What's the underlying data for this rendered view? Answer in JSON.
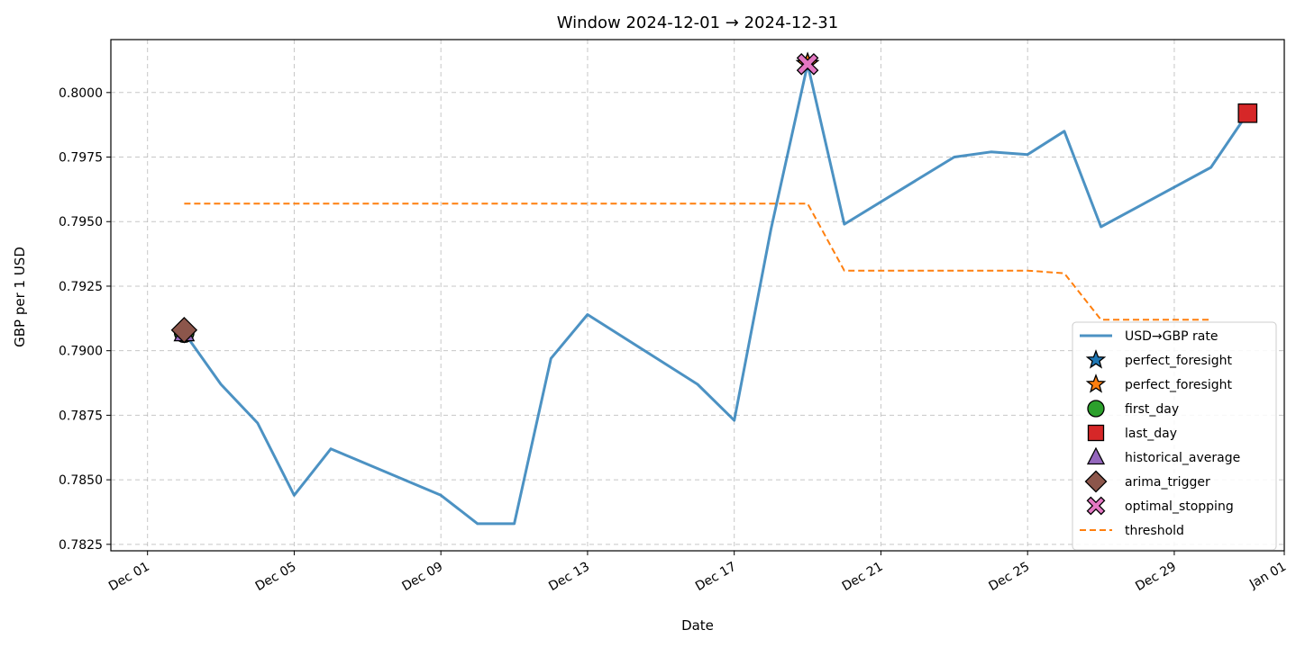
{
  "chart_data": {
    "type": "line",
    "title": "Window 2024-12-01 → 2024-12-31",
    "xlabel": "Date",
    "ylabel": "GBP per 1 USD",
    "xlim": [
      "2024-11-30",
      "2025-01-01"
    ],
    "ylim": [
      0.78225,
      0.80205
    ],
    "grid": true,
    "legend_position": "lower-right",
    "x_ticks": [
      {
        "date": "2024-12-01",
        "label": "Dec 01"
      },
      {
        "date": "2024-12-05",
        "label": "Dec 05"
      },
      {
        "date": "2024-12-09",
        "label": "Dec 09"
      },
      {
        "date": "2024-12-13",
        "label": "Dec 13"
      },
      {
        "date": "2024-12-17",
        "label": "Dec 17"
      },
      {
        "date": "2024-12-21",
        "label": "Dec 21"
      },
      {
        "date": "2024-12-25",
        "label": "Dec 25"
      },
      {
        "date": "2024-12-29",
        "label": "Dec 29"
      },
      {
        "date": "2025-01-01",
        "label": "Jan 01"
      }
    ],
    "y_ticks": [
      {
        "value": 0.7825,
        "label": "0.7825"
      },
      {
        "value": 0.785,
        "label": "0.7850"
      },
      {
        "value": 0.7875,
        "label": "0.7875"
      },
      {
        "value": 0.79,
        "label": "0.7900"
      },
      {
        "value": 0.7925,
        "label": "0.7925"
      },
      {
        "value": 0.795,
        "label": "0.7950"
      },
      {
        "value": 0.7975,
        "label": "0.7975"
      },
      {
        "value": 0.8,
        "label": "0.8000"
      }
    ],
    "series": [
      {
        "name": "USD→GBP rate",
        "kind": "line",
        "color": "#1f77b4",
        "points": [
          {
            "x": "2024-12-02",
            "y": 0.7907
          },
          {
            "x": "2024-12-03",
            "y": 0.7887
          },
          {
            "x": "2024-12-04",
            "y": 0.7872
          },
          {
            "x": "2024-12-05",
            "y": 0.7844
          },
          {
            "x": "2024-12-06",
            "y": 0.7862
          },
          {
            "x": "2024-12-09",
            "y": 0.7844
          },
          {
            "x": "2024-12-10",
            "y": 0.7833
          },
          {
            "x": "2024-12-11",
            "y": 0.7833
          },
          {
            "x": "2024-12-12",
            "y": 0.7897
          },
          {
            "x": "2024-12-13",
            "y": 0.7914
          },
          {
            "x": "2024-12-16",
            "y": 0.7887
          },
          {
            "x": "2024-12-17",
            "y": 0.7873
          },
          {
            "x": "2024-12-18",
            "y": 0.7947
          },
          {
            "x": "2024-12-19",
            "y": 0.8011
          },
          {
            "x": "2024-12-20",
            "y": 0.7949
          },
          {
            "x": "2024-12-23",
            "y": 0.7975
          },
          {
            "x": "2024-12-24",
            "y": 0.7977
          },
          {
            "x": "2024-12-25",
            "y": 0.7976
          },
          {
            "x": "2024-12-26",
            "y": 0.7985
          },
          {
            "x": "2024-12-27",
            "y": 0.7948
          },
          {
            "x": "2024-12-30",
            "y": 0.7971
          },
          {
            "x": "2024-12-31",
            "y": 0.7992
          }
        ]
      },
      {
        "name": "threshold",
        "kind": "dashed-line",
        "color": "#ff7f0e",
        "points": [
          {
            "x": "2024-12-02",
            "y": 0.7957
          },
          {
            "x": "2024-12-19",
            "y": 0.7957
          },
          {
            "x": "2024-12-20",
            "y": 0.7931
          },
          {
            "x": "2024-12-25",
            "y": 0.7931
          },
          {
            "x": "2024-12-26",
            "y": 0.793
          },
          {
            "x": "2024-12-27",
            "y": 0.7912
          },
          {
            "x": "2024-12-30",
            "y": 0.7912
          }
        ]
      }
    ],
    "markers": [
      {
        "name": "perfect_foresight",
        "shape": "star",
        "color": "#1f77b4",
        "x": "2024-12-19",
        "y": 0.8011
      },
      {
        "name": "perfect_foresight",
        "shape": "star",
        "color": "#ff7f0e",
        "x": "2024-12-19",
        "y": 0.8011
      },
      {
        "name": "first_day",
        "shape": "circle",
        "color": "#2ca02c",
        "x": "2024-12-02",
        "y": 0.7907
      },
      {
        "name": "last_day",
        "shape": "square",
        "color": "#d62728",
        "x": "2024-12-31",
        "y": 0.7992
      },
      {
        "name": "historical_average",
        "shape": "triangle",
        "color": "#9467bd",
        "x": "2024-12-02",
        "y": 0.7907
      },
      {
        "name": "arima_trigger",
        "shape": "diamond",
        "color": "#8c564b",
        "x": "2024-12-02",
        "y": 0.7908
      },
      {
        "name": "optimal_stopping",
        "shape": "x",
        "color": "#e377c2",
        "x": "2024-12-19",
        "y": 0.8011
      }
    ],
    "legend": [
      {
        "label": "USD→GBP rate",
        "kind": "line",
        "color": "#1f77b4"
      },
      {
        "label": "perfect_foresight",
        "kind": "star",
        "color": "#1f77b4"
      },
      {
        "label": "perfect_foresight",
        "kind": "star",
        "color": "#ff7f0e"
      },
      {
        "label": "first_day",
        "kind": "circle",
        "color": "#2ca02c"
      },
      {
        "label": "last_day",
        "kind": "square",
        "color": "#d62728"
      },
      {
        "label": "historical_average",
        "kind": "triangle",
        "color": "#9467bd"
      },
      {
        "label": "arima_trigger",
        "kind": "diamond",
        "color": "#8c564b"
      },
      {
        "label": "optimal_stopping",
        "kind": "x",
        "color": "#e377c2"
      },
      {
        "label": "threshold",
        "kind": "dashed-line",
        "color": "#ff7f0e"
      }
    ]
  }
}
